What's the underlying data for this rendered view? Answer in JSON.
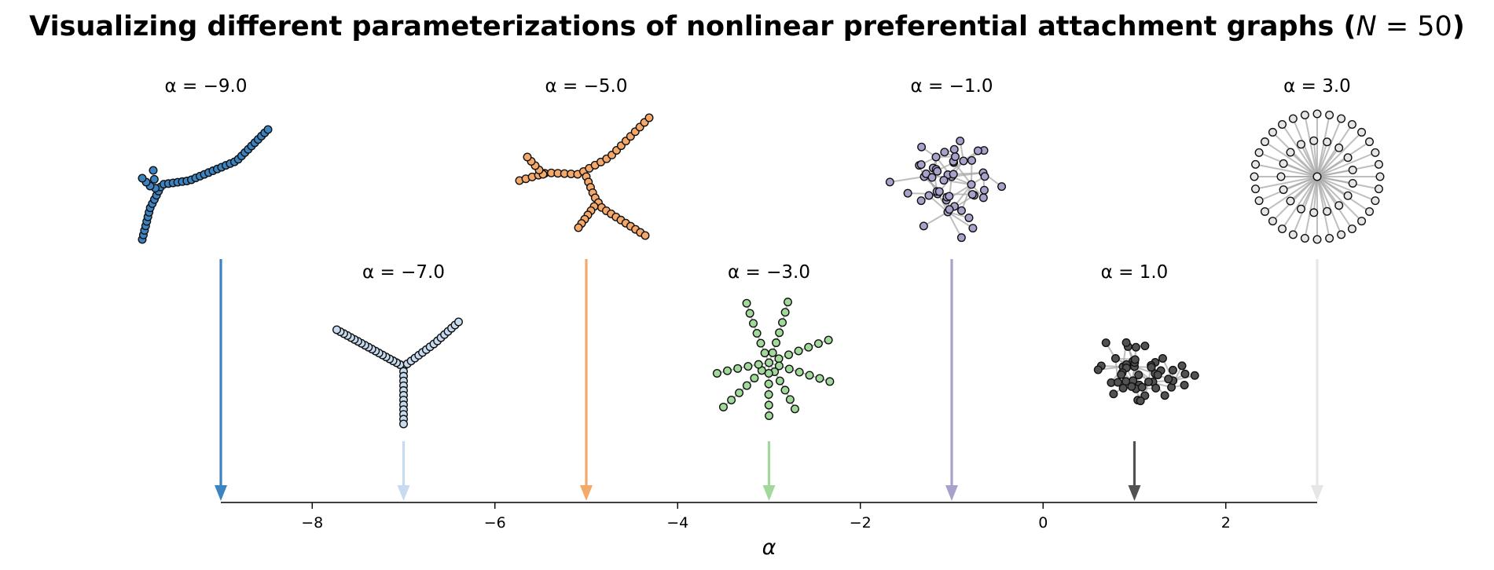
{
  "title": {
    "text": "Visualizing different parameterizations of nonlinear preferential attachment graphs (",
    "var": "N",
    "eq": " = ",
    "value": "50",
    "close": ")"
  },
  "chart_data": {
    "type": "scatter",
    "title": "Visualizing different parameterizations of nonlinear preferential attachment graphs (N = 50)",
    "xlabel": "α",
    "xlim": [
      -9,
      3
    ],
    "xticks": [
      -8,
      -6,
      -4,
      -2,
      0,
      2
    ],
    "xtick_labels": [
      "−8",
      "−6",
      "−4",
      "−2",
      "0",
      "2"
    ],
    "grid": false,
    "panels": [
      {
        "alpha": -9.0,
        "label": "α = −9.0",
        "row": "top",
        "color": "#3b84c1",
        "layout": "chain"
      },
      {
        "alpha": -7.0,
        "label": "α = −7.0",
        "row": "bottom",
        "color": "#c6dbef",
        "layout": "three-arms"
      },
      {
        "alpha": -5.0,
        "label": "α = −5.0",
        "row": "top",
        "color": "#f4a86a",
        "layout": "branching-tree"
      },
      {
        "alpha": -3.0,
        "label": "α = −3.0",
        "row": "bottom",
        "color": "#a1d99b",
        "layout": "star-of-chains"
      },
      {
        "alpha": -1.0,
        "label": "α = −1.0",
        "row": "top",
        "color": "#a9a1cc",
        "layout": "bushy-tree"
      },
      {
        "alpha": 1.0,
        "label": "α = 1.0",
        "row": "bottom",
        "color": "#525252",
        "layout": "hub-tree"
      },
      {
        "alpha": 3.0,
        "label": "α = 3.0",
        "row": "top",
        "color": "#e6e6e6",
        "layout": "star"
      }
    ]
  }
}
